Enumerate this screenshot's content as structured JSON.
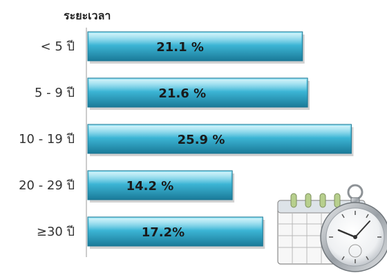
{
  "chart_data": {
    "type": "bar",
    "orientation": "horizontal",
    "title": "ระยะเวลา",
    "categories": [
      "< 5 ปี",
      "5 - 9 ปี",
      "10 - 19 ปี",
      "20 - 29 ปี",
      "≥30 ปี"
    ],
    "values": [
      21.1,
      21.6,
      25.9,
      14.2,
      17.2
    ],
    "data_labels": [
      "21.1 %",
      "21.6 %",
      "25.9 %",
      "14.2 %",
      "17.2%"
    ],
    "xlim": [
      0,
      27.5
    ],
    "grid": false,
    "bar_color": "#2fa8c9",
    "bar_highlight": "#8fe0f2",
    "bar_shade": "#1a7592",
    "decoration": [
      "calendar-icon",
      "pocket-watch-icon"
    ]
  }
}
